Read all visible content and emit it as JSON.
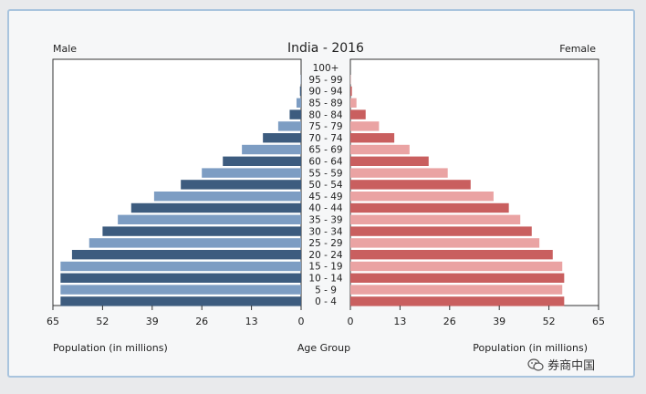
{
  "chart_data": {
    "type": "bar",
    "title": "India - 2016",
    "left_label": "Male",
    "right_label": "Female",
    "center_axis_label": "Age Group",
    "xlabel_left": "Population (in millions)",
    "xlabel_right": "Population (in millions)",
    "xlim": [
      0,
      65
    ],
    "xticks": [
      65,
      52,
      39,
      26,
      13,
      0
    ],
    "categories": [
      "100+",
      "95 - 99",
      "90 - 94",
      "85 - 89",
      "80 - 84",
      "75 - 79",
      "70 - 74",
      "65 - 69",
      "60 - 64",
      "55 - 59",
      "50 - 54",
      "45 - 49",
      "40 - 44",
      "35 - 39",
      "30 - 34",
      "25 - 29",
      "20 - 24",
      "15 - 19",
      "10 - 14",
      "5 - 9",
      "0 - 4"
    ],
    "series": [
      {
        "name": "Male",
        "values": [
          0,
          0.1,
          0.3,
          1.2,
          3,
          6,
          10,
          15.5,
          20.5,
          26,
          31.5,
          38.5,
          44.5,
          48,
          52,
          55.5,
          60,
          63,
          63,
          63,
          63
        ]
      },
      {
        "name": "Female",
        "values": [
          0,
          0.1,
          0.4,
          1.6,
          4,
          7.5,
          11.5,
          15.5,
          20.5,
          25.5,
          31.5,
          37.5,
          41.5,
          44.5,
          47.5,
          49.5,
          53,
          55.5,
          56,
          55.5,
          56
        ]
      }
    ],
    "colors": {
      "male_dark": "#3d5c7f",
      "male_light": "#7d9dc3",
      "female_dark": "#c95f5f",
      "female_light": "#eaa3a3"
    },
    "grid": false
  },
  "watermark": {
    "text": "券商中国",
    "icon": "wechat-icon"
  }
}
